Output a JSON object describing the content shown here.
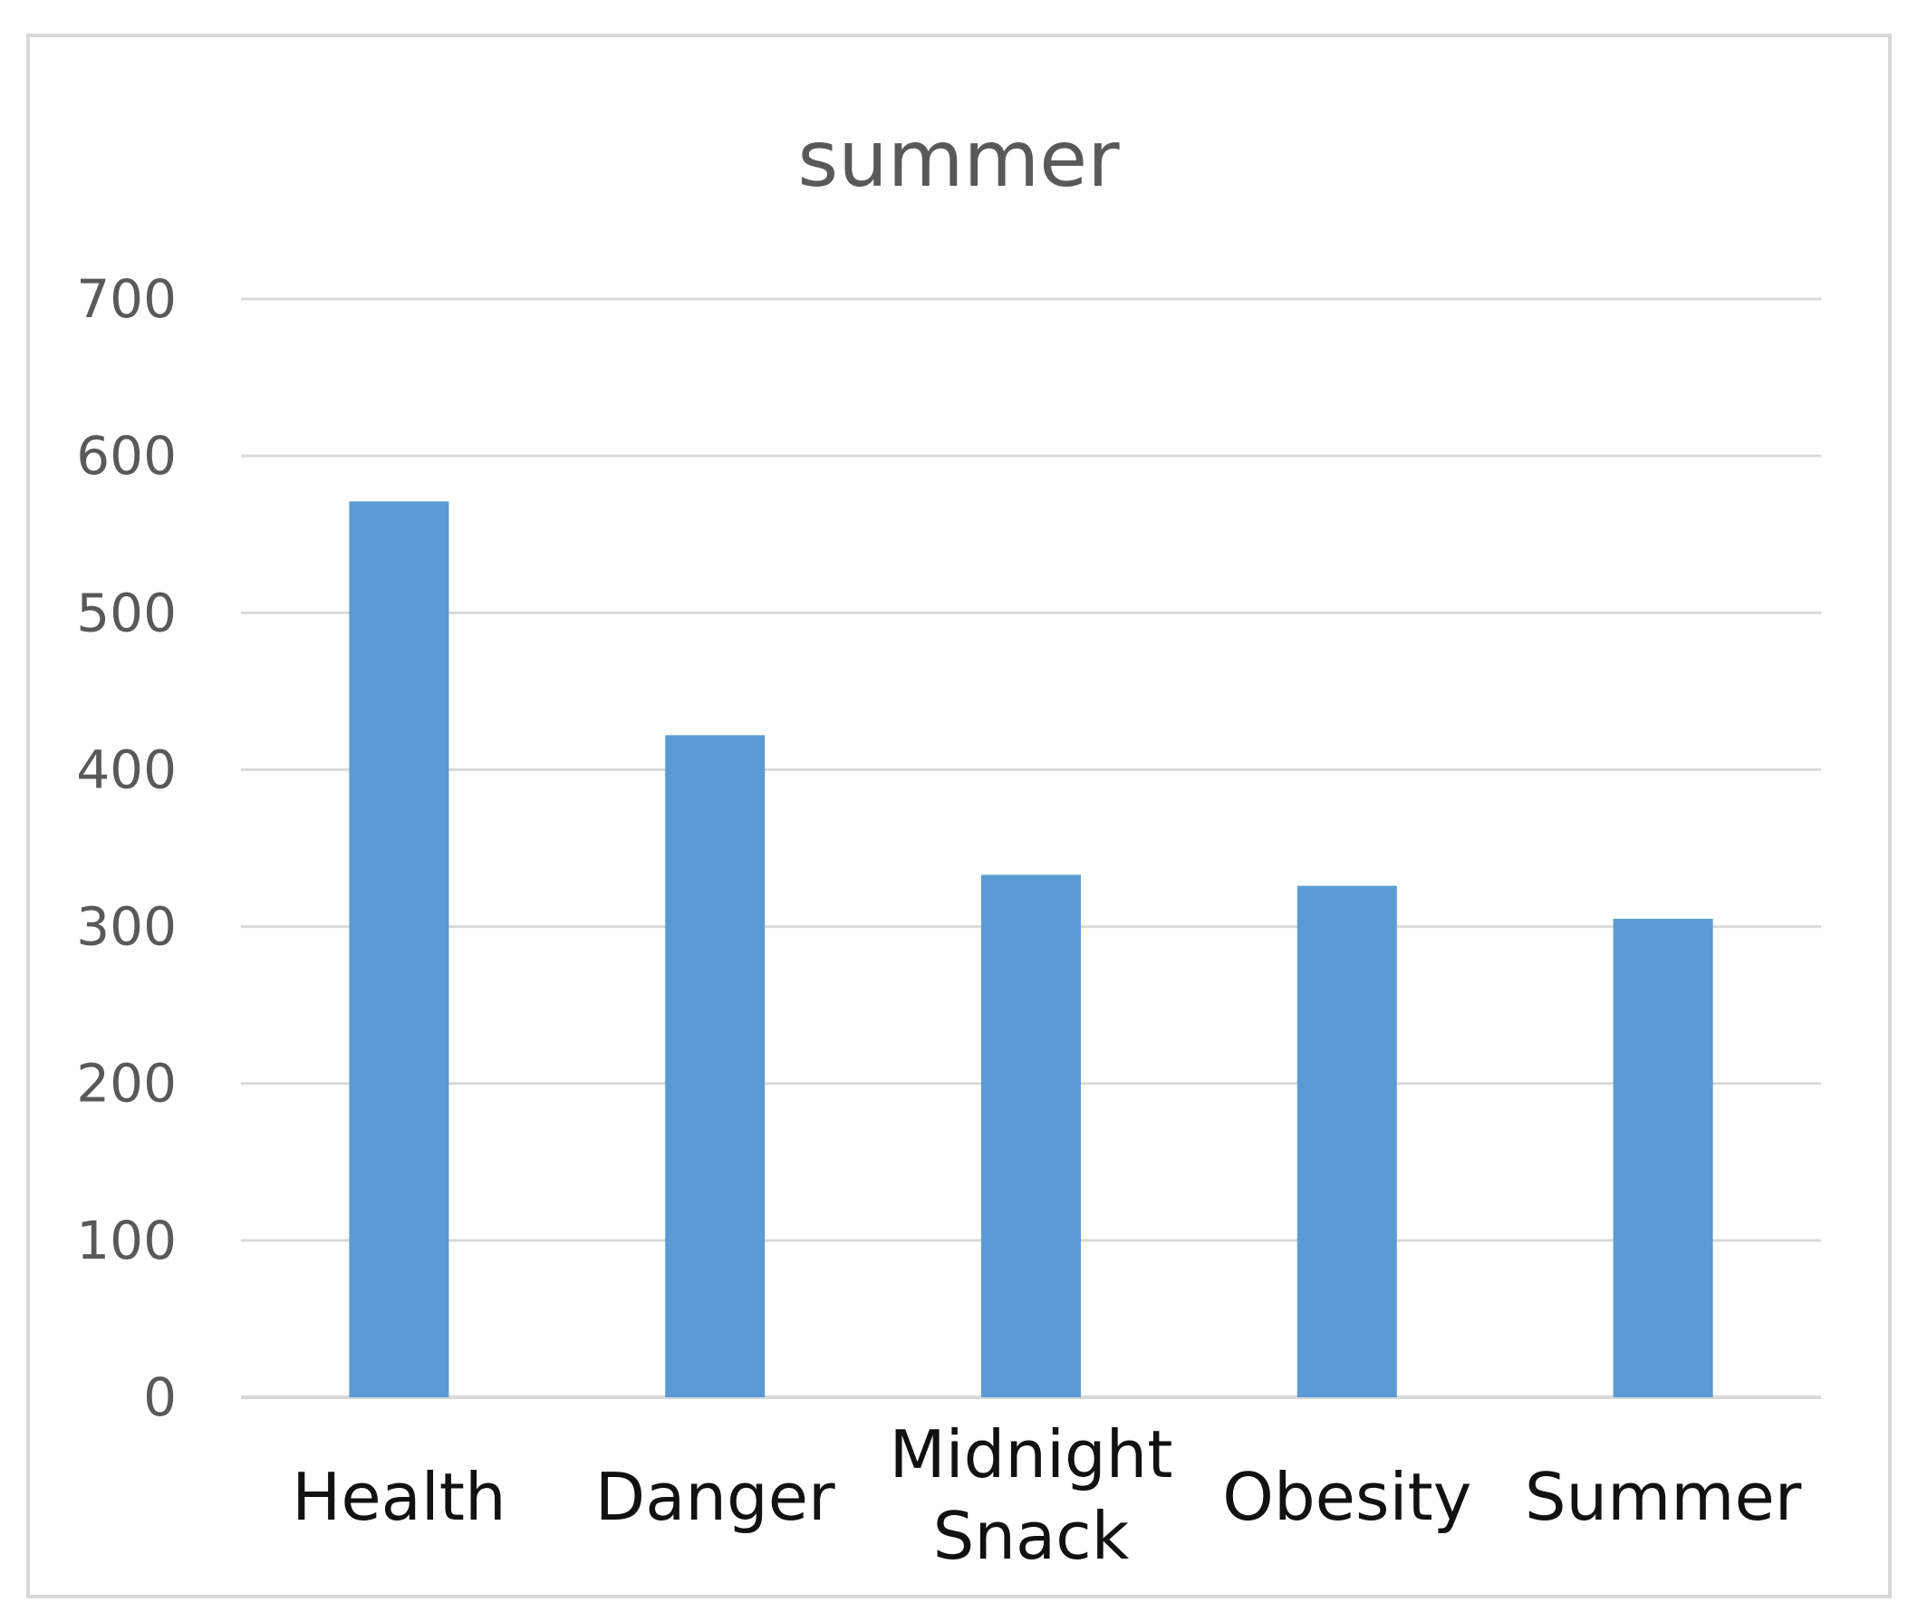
{
  "chart_data": {
    "type": "bar",
    "title": "summer",
    "categories": [
      "Health",
      "Danger",
      "Midnight Snack",
      "Obesity",
      "Summer"
    ],
    "category_lines": [
      [
        "Health"
      ],
      [
        "Danger"
      ],
      [
        "Midnight",
        "Snack"
      ],
      [
        "Obesity"
      ],
      [
        "Summer"
      ]
    ],
    "values": [
      571,
      422,
      333,
      326,
      305
    ],
    "xlabel": "",
    "ylabel": "",
    "ylim": [
      0,
      700
    ],
    "yticks": [
      0,
      100,
      200,
      300,
      400,
      500,
      600,
      700
    ],
    "grid": true,
    "legend": "none",
    "colors": {
      "bar": "#5b9bd5",
      "grid": "#d9d9d9",
      "axis": "#d9d9d9"
    }
  }
}
